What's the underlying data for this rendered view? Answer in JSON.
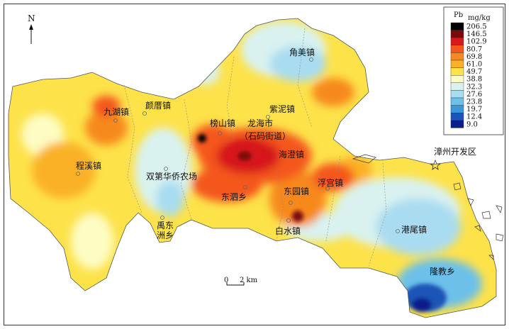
{
  "north_label": "N",
  "legend": {
    "element": "Pb",
    "unit": "mg/kg",
    "classes": [
      {
        "value": "206.5",
        "color": "#000000"
      },
      {
        "value": "146.5",
        "color": "#7a0a0a"
      },
      {
        "value": "102.9",
        "color": "#d7191c"
      },
      {
        "value": "80.7",
        "color": "#f4561d"
      },
      {
        "value": "69.8",
        "color": "#f7891f"
      },
      {
        "value": "61.0",
        "color": "#fbb127"
      },
      {
        "value": "49.7",
        "color": "#fde24a"
      },
      {
        "value": "38.8",
        "color": "#fdfcc3"
      },
      {
        "value": "32.3",
        "color": "#d9f2f0"
      },
      {
        "value": "27.6",
        "color": "#a9dcf0"
      },
      {
        "value": "23.8",
        "color": "#6cc0ea"
      },
      {
        "value": "19.7",
        "color": "#3d97d6"
      },
      {
        "value": "12.4",
        "color": "#1b54b8"
      },
      {
        "value": "9.0",
        "color": "#0a1f8c"
      }
    ]
  },
  "scale_bar": {
    "start": "0",
    "end": "2 km"
  },
  "places": {
    "jiaomei": "角美镇",
    "jiuhu": "九湖镇",
    "yanxiu": "颜厝镇",
    "zini": "紫泥镇",
    "bangshan": "榜山镇",
    "longhai": "龙海市",
    "shima": "（石码街道）",
    "haicheng": "海澄镇",
    "chengxi": "程溪镇",
    "shuangdi": "双第华侨农场",
    "dongsi": "东泗乡",
    "dongyuan": "东园镇",
    "fugong": "浮宫镇",
    "zhangzhou_dev": "漳州开发区",
    "yudong1": "禹东",
    "yudong2": "洲乡",
    "baishui": "白水镇",
    "gangwei": "港尾镇",
    "longjiao": "隆教乡"
  }
}
